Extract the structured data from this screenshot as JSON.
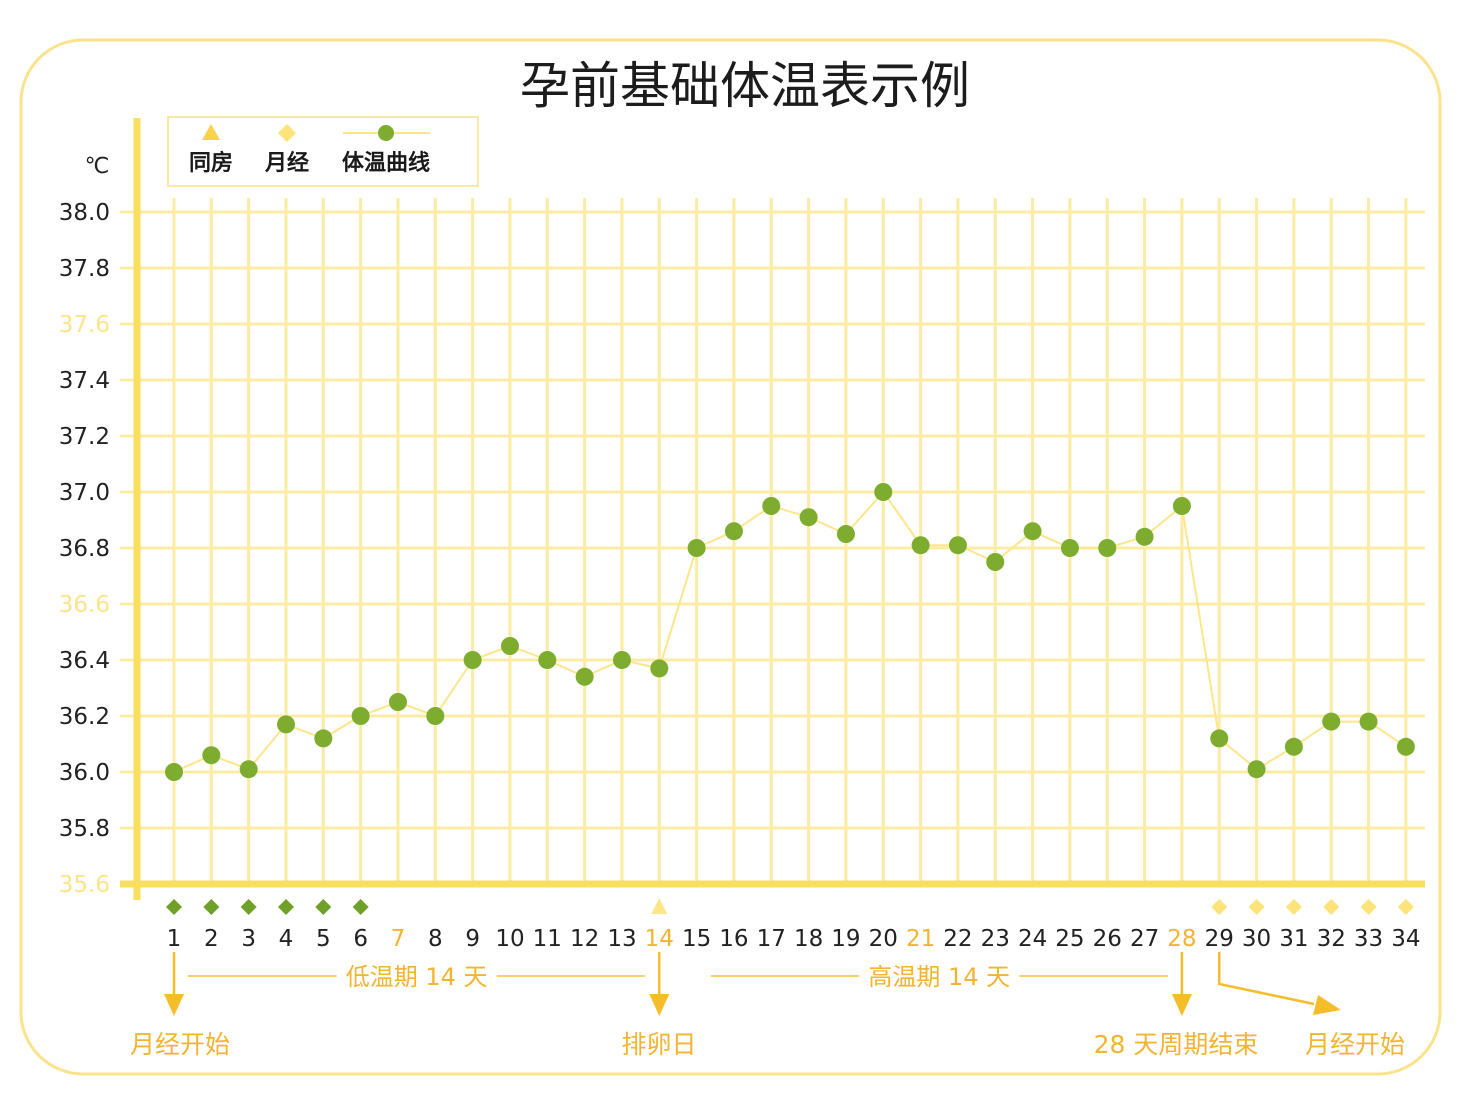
{
  "chart_data": {
    "type": "line",
    "title": "孕前基础体温表示例",
    "xlabel": "",
    "ylabel": "℃",
    "ylim": [
      35.6,
      38.0
    ],
    "yticks": [
      "38.0",
      "37.8",
      "37.6",
      "37.4",
      "37.2",
      "37.0",
      "36.8",
      "36.6",
      "36.4",
      "36.2",
      "36.0",
      "35.8",
      "35.6"
    ],
    "light_yticks": [
      37.6,
      36.6,
      35.6
    ],
    "x": [
      1,
      2,
      3,
      4,
      5,
      6,
      7,
      8,
      9,
      10,
      11,
      12,
      13,
      14,
      15,
      16,
      17,
      18,
      19,
      20,
      21,
      22,
      23,
      24,
      25,
      26,
      27,
      28,
      29,
      30,
      31,
      32,
      33,
      34
    ],
    "highlight_x": [
      7,
      14,
      21,
      28
    ],
    "series": [
      {
        "name": "体温曲线",
        "color": "#7dac2f",
        "line_color": "#fde68a",
        "values": [
          36.0,
          36.06,
          36.01,
          36.17,
          36.12,
          36.2,
          36.25,
          36.2,
          36.4,
          36.45,
          36.4,
          36.34,
          36.4,
          36.37,
          36.8,
          36.86,
          36.95,
          36.91,
          36.85,
          37.0,
          36.81,
          36.81,
          36.75,
          36.86,
          36.8,
          36.8,
          36.84,
          36.95,
          36.12,
          36.01,
          36.09,
          36.18,
          36.18,
          36.09
        ]
      }
    ],
    "markers": [
      {
        "name": "同房",
        "shape": "triangle",
        "color": "#fde58a",
        "days": [
          14
        ]
      },
      {
        "name": "月经",
        "shape": "diamond",
        "color": "#fde37a",
        "days": [
          29,
          30,
          31,
          32,
          33,
          34
        ]
      },
      {
        "shape": "diamond",
        "color": "#6fa02a",
        "days": [
          1,
          2,
          3,
          4,
          5,
          6
        ]
      }
    ],
    "annotations": {
      "phases": [
        {
          "label": "低温期 14 天",
          "from": 1,
          "to": 14
        },
        {
          "label": "高温期 14 天",
          "from": 15,
          "to": 28
        }
      ],
      "events": [
        {
          "day": 1,
          "label": "月经开始"
        },
        {
          "day": 14,
          "label": "排卵日"
        },
        {
          "day": 28,
          "label": "28 天周期结束"
        },
        {
          "day": 29,
          "label": "月经开始"
        }
      ]
    },
    "colors": {
      "accent": "#f2b431",
      "arrow": "#f6bd2a",
      "axis": "#f9df5e",
      "grid": "#fceba3",
      "frame": "#fbe38c"
    },
    "grid": true,
    "legend_position": "top-left"
  }
}
